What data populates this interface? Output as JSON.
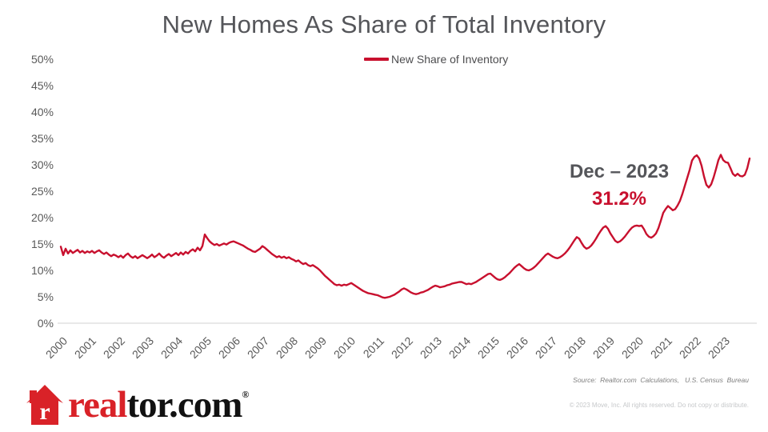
{
  "footer": {
    "logo": {
      "house_letter": "r",
      "text_red": "real",
      "text_black": "tor.com",
      "registered": "®"
    },
    "source": "Source:  Realtor.com  Calculations,   U.S. Census  Bureau",
    "copyright": "© 2023 Move, Inc. All rights reserved. Do not copy or distribute."
  },
  "colors": {
    "line": "#c8102e",
    "annotation_value": "#c8102e",
    "title_gray": "#55565a",
    "axis_label_gray": "#595959",
    "axis_line_gray": "#d9d9d9",
    "logo_red": "#d92228"
  },
  "chart_data": {
    "type": "line",
    "title": "New Homes As Share of Total Inventory",
    "grid": false,
    "legend_position": "top-center",
    "line_color": "#c8102e",
    "ylim": [
      0,
      50
    ],
    "y_tick_labels": [
      "0%",
      "5%",
      "10%",
      "15%",
      "20%",
      "25%",
      "30%",
      "35%",
      "40%",
      "45%",
      "50%"
    ],
    "x_tick_labels": [
      "2000",
      "2001",
      "2002",
      "2003",
      "2004",
      "2005",
      "2006",
      "2007",
      "2008",
      "2009",
      "2010",
      "2011",
      "2012",
      "2013",
      "2014",
      "2015",
      "2016",
      "2017",
      "2018",
      "2019",
      "2020",
      "2021",
      "2022",
      "2023"
    ],
    "highlight": {
      "label": "Dec – 2023",
      "value": "31.2%"
    },
    "series": [
      {
        "name": "New Share of Inventory",
        "start": "2000-01",
        "frequency": "monthly",
        "unit": "percent",
        "values": [
          14.5,
          12.9,
          14.1,
          13.2,
          13.8,
          13.3,
          13.6,
          13.9,
          13.4,
          13.7,
          13.3,
          13.6,
          13.4,
          13.7,
          13.3,
          13.6,
          13.8,
          13.4,
          13.1,
          13.4,
          13.0,
          12.7,
          13.0,
          12.8,
          12.5,
          12.8,
          12.4,
          12.9,
          13.2,
          12.7,
          12.4,
          12.7,
          12.3,
          12.6,
          12.9,
          12.6,
          12.3,
          12.6,
          13.0,
          12.5,
          12.8,
          13.2,
          12.7,
          12.4,
          12.8,
          13.1,
          12.7,
          13.0,
          13.3,
          12.9,
          13.4,
          13.0,
          13.5,
          13.2,
          13.7,
          14.0,
          13.6,
          14.3,
          13.8,
          14.6,
          16.8,
          16.1,
          15.5,
          15.1,
          14.8,
          15.0,
          14.7,
          14.9,
          15.1,
          14.9,
          15.2,
          15.4,
          15.5,
          15.3,
          15.1,
          14.9,
          14.7,
          14.4,
          14.1,
          13.9,
          13.6,
          13.5,
          13.8,
          14.1,
          14.6,
          14.3,
          13.9,
          13.5,
          13.1,
          12.8,
          12.5,
          12.7,
          12.4,
          12.6,
          12.3,
          12.5,
          12.2,
          12.0,
          11.7,
          11.9,
          11.5,
          11.2,
          11.4,
          11.0,
          10.8,
          11.0,
          10.7,
          10.4,
          10.0,
          9.5,
          9.0,
          8.6,
          8.2,
          7.8,
          7.4,
          7.2,
          7.3,
          7.1,
          7.3,
          7.2,
          7.4,
          7.6,
          7.3,
          7.0,
          6.7,
          6.4,
          6.1,
          5.9,
          5.7,
          5.6,
          5.5,
          5.4,
          5.3,
          5.1,
          4.9,
          4.8,
          4.9,
          5.0,
          5.2,
          5.4,
          5.7,
          6.0,
          6.4,
          6.6,
          6.4,
          6.1,
          5.8,
          5.6,
          5.5,
          5.6,
          5.8,
          5.9,
          6.1,
          6.3,
          6.6,
          6.9,
          7.1,
          7.0,
          6.8,
          6.9,
          7.0,
          7.2,
          7.3,
          7.5,
          7.6,
          7.7,
          7.8,
          7.8,
          7.6,
          7.4,
          7.5,
          7.4,
          7.6,
          7.8,
          8.1,
          8.4,
          8.7,
          9.0,
          9.3,
          9.4,
          9.0,
          8.6,
          8.3,
          8.2,
          8.4,
          8.7,
          9.1,
          9.5,
          10.0,
          10.5,
          10.9,
          11.2,
          10.8,
          10.4,
          10.1,
          10.0,
          10.2,
          10.5,
          10.9,
          11.4,
          11.9,
          12.4,
          12.9,
          13.2,
          12.9,
          12.6,
          12.4,
          12.3,
          12.5,
          12.8,
          13.2,
          13.7,
          14.3,
          15.0,
          15.7,
          16.3,
          16.0,
          15.2,
          14.5,
          14.1,
          14.3,
          14.7,
          15.3,
          16.0,
          16.8,
          17.5,
          18.1,
          18.4,
          17.9,
          17.0,
          16.3,
          15.6,
          15.3,
          15.5,
          15.9,
          16.4,
          17.0,
          17.6,
          18.1,
          18.4,
          18.5,
          18.4,
          18.5,
          17.8,
          16.9,
          16.4,
          16.2,
          16.5,
          17.0,
          18.0,
          19.4,
          20.9,
          21.6,
          22.2,
          21.8,
          21.4,
          21.6,
          22.3,
          23.2,
          24.5,
          26.0,
          27.5,
          29.0,
          30.8,
          31.5,
          31.8,
          31.2,
          29.8,
          27.8,
          26.2,
          25.7,
          26.3,
          27.6,
          29.2,
          30.9,
          31.9,
          30.9,
          30.5,
          30.4,
          29.4,
          28.3,
          27.9,
          28.3,
          27.9,
          27.8,
          28.1,
          29.3,
          31.2
        ]
      }
    ]
  }
}
